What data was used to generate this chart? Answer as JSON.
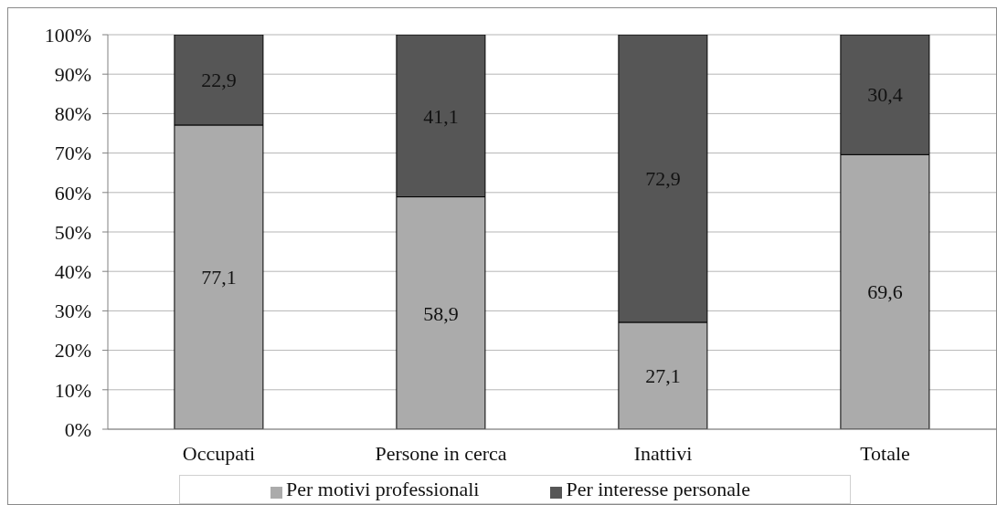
{
  "chart_data": {
    "type": "bar",
    "stacked": true,
    "categories": [
      "Occupati",
      "Persone in cerca",
      "Inattivi",
      "Totale"
    ],
    "series": [
      {
        "name": "Per motivi professionali",
        "color": "#ababab",
        "values": [
          77.1,
          58.9,
          27.1,
          69.6
        ],
        "value_labels": [
          "77,1",
          "58,9",
          "27,1",
          "69,6"
        ]
      },
      {
        "name": "Per interesse personale",
        "color": "#565656",
        "values": [
          22.9,
          41.1,
          72.9,
          30.4
        ],
        "value_labels": [
          "22,9",
          "41,1",
          "72,9",
          "30,4"
        ]
      }
    ],
    "ylim": [
      0,
      100
    ],
    "yticks": [
      {
        "value": 0,
        "label": "0%"
      },
      {
        "value": 10,
        "label": "10%"
      },
      {
        "value": 20,
        "label": "20%"
      },
      {
        "value": 30,
        "label": "30%"
      },
      {
        "value": 40,
        "label": "40%"
      },
      {
        "value": 50,
        "label": "50%"
      },
      {
        "value": 60,
        "label": "60%"
      },
      {
        "value": 70,
        "label": "70%"
      },
      {
        "value": 80,
        "label": "80%"
      },
      {
        "value": 90,
        "label": "90%"
      },
      {
        "value": 100,
        "label": "100%"
      }
    ],
    "grid": "y",
    "legend": "bottom"
  }
}
